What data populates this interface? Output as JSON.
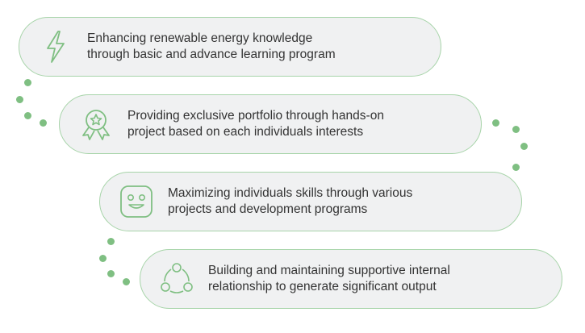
{
  "items": [
    {
      "icon": "lightning-bolt-icon",
      "line1": "Enhancing renewable energy knowledge",
      "line2": "through basic and advance learning program"
    },
    {
      "icon": "award-badge-icon",
      "line1": "Providing exclusive portfolio through hands-on",
      "line2": "project based on each individuals interests"
    },
    {
      "icon": "smiley-face-icon",
      "line1": "Maximizing individuals skills through various",
      "line2": "projects and development programs"
    },
    {
      "icon": "network-cycle-icon",
      "line1": "Building and maintaining supportive internal",
      "line2": "relationship to generate significant output"
    }
  ],
  "colors": {
    "accent": "#7fbf82",
    "border": "#a7d4a9",
    "pill_bg": "#f0f1f2",
    "text": "#333333"
  }
}
